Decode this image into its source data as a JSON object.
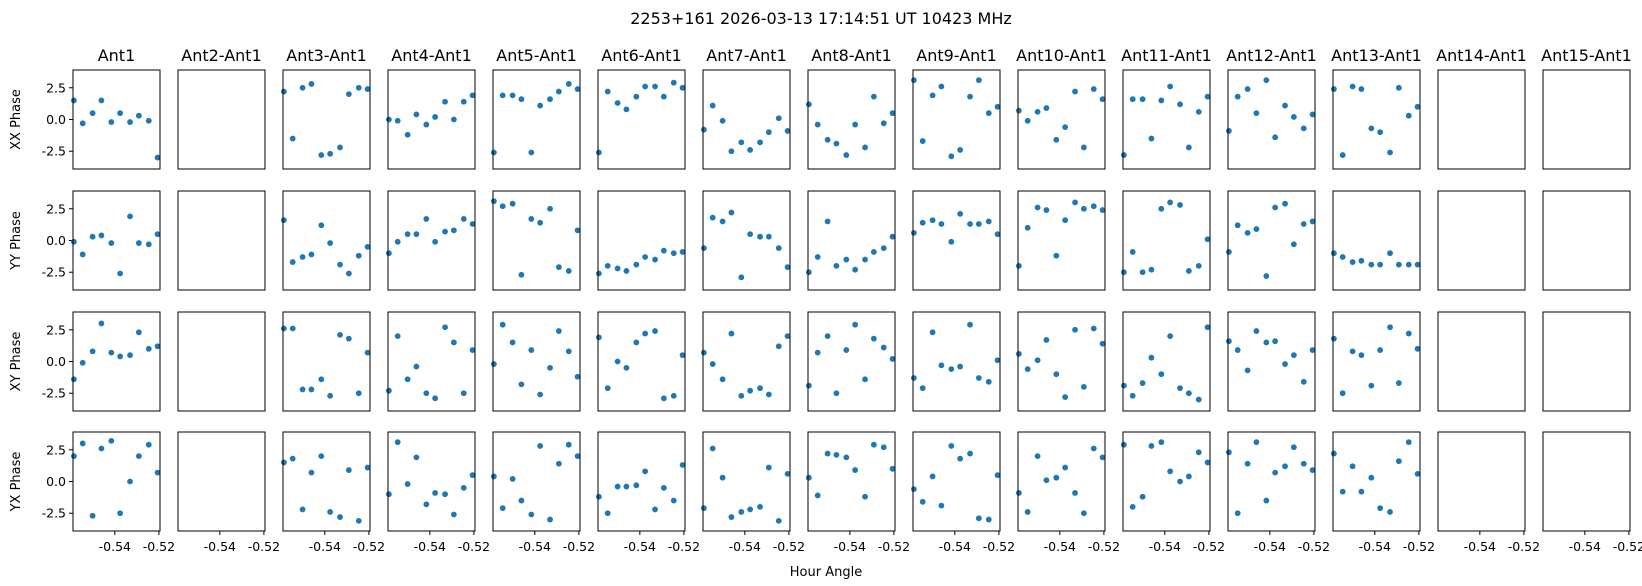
{
  "figure": {
    "suptitle": "2253+161  2026-03-13 17:14:51 UT  10423 MHz",
    "xlabel": "Hour Angle"
  },
  "chart_data": {
    "type": "scatter",
    "title": "2253+161  2026-03-13 17:14:51 UT  10423 MHz",
    "xlabel": "Hour Angle",
    "columns": [
      "Ant1",
      "Ant2-Ant1",
      "Ant3-Ant1",
      "Ant4-Ant1",
      "Ant5-Ant1",
      "Ant6-Ant1",
      "Ant7-Ant1",
      "Ant8-Ant1",
      "Ant9-Ant1",
      "Ant10-Ant1",
      "Ant11-Ant1",
      "Ant12-Ant1",
      "Ant13-Ant1",
      "Ant14-Ant1",
      "Ant15-Ant1"
    ],
    "rows": [
      "XX Phase",
      "YY Phase",
      "XY Phase",
      "YX Phase"
    ],
    "xlim": [
      -0.559,
      -0.5195
    ],
    "ylim": [
      -3.9,
      3.9
    ],
    "xticks": [
      -0.54,
      -0.52
    ],
    "xtick_labels": [
      "-0.54",
      "-0.52"
    ],
    "yticks": [
      2.5,
      0.0,
      -2.5
    ],
    "ytick_labels": [
      "2.5",
      "0.0",
      "-2.5"
    ],
    "grid": false,
    "marker_color": "#1f77b4",
    "x": [
      -0.5586,
      -0.5546,
      -0.5501,
      -0.5461,
      -0.5416,
      -0.5376,
      -0.5331,
      -0.5291,
      -0.5246,
      -0.5206
    ],
    "panels": [
      [
        {
          "y": [
            1.5,
            -0.3,
            0.5,
            1.5,
            -0.2,
            0.5,
            -0.2,
            0.3,
            -0.1,
            -3.0
          ]
        },
        {
          "y": []
        },
        {
          "y": [
            2.2,
            -1.5,
            2.5,
            2.8,
            -2.8,
            -2.7,
            -2.2,
            2.0,
            2.5,
            2.4
          ]
        },
        {
          "y": [
            0.0,
            -0.1,
            -1.2,
            0.4,
            -0.4,
            0.2,
            1.4,
            0.0,
            1.4,
            1.9
          ]
        },
        {
          "y": [
            -2.6,
            1.9,
            1.9,
            1.6,
            -2.6,
            1.1,
            1.6,
            2.2,
            2.8,
            2.4
          ]
        },
        {
          "y": [
            -2.6,
            2.2,
            1.3,
            0.8,
            1.8,
            2.6,
            2.6,
            1.8,
            2.9,
            2.5
          ]
        },
        {
          "y": [
            -0.8,
            1.1,
            -0.1,
            -2.5,
            -1.8,
            -2.4,
            -1.8,
            -1.0,
            0.1,
            -0.9
          ]
        },
        {
          "y": [
            1.2,
            -0.4,
            -1.6,
            -1.9,
            -2.8,
            -0.4,
            -2.2,
            1.8,
            -0.3,
            0.5
          ]
        },
        {
          "y": [
            3.1,
            -1.7,
            1.9,
            2.6,
            -2.9,
            -2.4,
            1.8,
            3.1,
            0.5,
            1.0
          ]
        },
        {
          "y": [
            0.7,
            -0.1,
            0.6,
            0.9,
            -1.6,
            -0.6,
            2.2,
            -2.2,
            2.4,
            1.6
          ]
        },
        {
          "y": [
            -2.8,
            1.6,
            1.6,
            -1.5,
            1.5,
            2.6,
            1.2,
            -2.2,
            0.6,
            1.8
          ]
        },
        {
          "y": [
            -0.9,
            1.8,
            2.4,
            0.5,
            3.1,
            -1.4,
            1.1,
            0.2,
            -0.7,
            0.4
          ]
        },
        {
          "y": [
            2.4,
            -2.8,
            2.6,
            2.4,
            -0.7,
            -1.0,
            -2.6,
            2.5,
            0.3,
            1.0
          ]
        },
        {
          "y": []
        },
        {
          "y": []
        }
      ],
      [
        {
          "y": [
            -0.1,
            -1.1,
            0.3,
            0.4,
            -0.2,
            -2.6,
            1.9,
            -0.2,
            -0.3,
            0.5
          ]
        },
        {
          "y": []
        },
        {
          "y": [
            1.6,
            -1.7,
            -1.3,
            -1.1,
            1.2,
            -0.2,
            -1.9,
            -2.6,
            -1.2,
            -0.5
          ]
        },
        {
          "y": [
            -1.0,
            -0.1,
            0.5,
            0.5,
            1.7,
            -0.1,
            0.7,
            0.8,
            1.7,
            1.3
          ]
        },
        {
          "y": [
            3.1,
            2.7,
            2.9,
            -2.7,
            1.7,
            1.4,
            2.5,
            -2.1,
            -2.4,
            0.8
          ]
        },
        {
          "y": [
            -2.6,
            -2.0,
            -2.2,
            -2.4,
            -1.9,
            -1.3,
            -1.5,
            -0.8,
            -1.0,
            -0.9
          ]
        },
        {
          "y": [
            -0.6,
            1.8,
            1.5,
            2.2,
            -2.9,
            0.5,
            0.3,
            0.3,
            -0.6,
            -2.1
          ]
        },
        {
          "y": [
            -2.5,
            -1.3,
            1.5,
            -2.0,
            -1.5,
            -2.3,
            -1.5,
            -0.9,
            -0.6,
            0.3
          ]
        },
        {
          "y": [
            0.6,
            1.4,
            1.6,
            1.3,
            -0.1,
            2.1,
            1.3,
            1.3,
            1.5,
            0.5
          ]
        },
        {
          "y": [
            -2.0,
            1.0,
            2.6,
            2.4,
            -1.2,
            1.6,
            3.0,
            2.5,
            2.7,
            2.4
          ]
        },
        {
          "y": [
            -2.5,
            -0.9,
            -2.5,
            -2.3,
            2.5,
            3.0,
            2.8,
            -2.4,
            -2.0,
            0.1
          ]
        },
        {
          "y": [
            -0.9,
            1.2,
            0.6,
            0.9,
            -2.8,
            2.6,
            2.9,
            -0.3,
            1.3,
            1.5
          ]
        },
        {
          "y": [
            -1.0,
            -1.3,
            -1.7,
            -1.6,
            -1.9,
            -1.9,
            -1.0,
            -1.9,
            -1.9,
            -1.9
          ]
        },
        {
          "y": []
        },
        {
          "y": []
        }
      ],
      [
        {
          "y": [
            -1.4,
            -0.1,
            0.8,
            3.0,
            0.7,
            0.4,
            0.5,
            2.3,
            1.0,
            1.2
          ]
        },
        {
          "y": []
        },
        {
          "y": [
            2.6,
            2.6,
            -2.2,
            -2.2,
            -1.4,
            -2.7,
            2.1,
            1.8,
            -2.5,
            0.7
          ]
        },
        {
          "y": [
            -2.3,
            2.0,
            -1.4,
            -0.4,
            -2.5,
            -2.9,
            2.7,
            1.5,
            -2.5,
            0.9
          ]
        },
        {
          "y": [
            -0.2,
            2.9,
            1.5,
            -1.8,
            0.9,
            -2.6,
            -0.5,
            2.4,
            0.8,
            -1.2
          ]
        },
        {
          "y": [
            1.9,
            -2.1,
            0.0,
            -0.5,
            1.5,
            2.2,
            2.4,
            -2.9,
            -2.7,
            0.5
          ]
        },
        {
          "y": [
            0.7,
            -0.2,
            -1.4,
            2.2,
            -2.7,
            -2.3,
            -2.1,
            -2.6,
            1.2,
            2.0
          ]
        },
        {
          "y": [
            -1.9,
            0.7,
            2.0,
            -2.5,
            0.9,
            2.9,
            -1.4,
            1.8,
            1.1,
            0.2
          ]
        },
        {
          "y": [
            -1.3,
            -2.1,
            2.3,
            -0.3,
            -0.6,
            -0.4,
            2.9,
            -1.3,
            -1.6,
            0.1
          ]
        },
        {
          "y": [
            0.6,
            -0.6,
            0.1,
            1.7,
            -1.0,
            -2.8,
            2.5,
            -2.0,
            2.6,
            1.4
          ]
        },
        {
          "y": [
            -1.9,
            -2.7,
            -1.7,
            0.3,
            -1.0,
            2.0,
            -2.1,
            -2.5,
            -3.0,
            2.7
          ]
        },
        {
          "y": [
            1.6,
            0.9,
            -0.7,
            2.4,
            1.5,
            1.6,
            -0.2,
            0.5,
            -1.6,
            0.9
          ]
        },
        {
          "y": [
            1.8,
            -2.5,
            0.8,
            0.5,
            -1.9,
            0.9,
            2.7,
            -1.7,
            2.2,
            1.0
          ]
        },
        {
          "y": []
        },
        {
          "y": []
        }
      ],
      [
        {
          "y": [
            2.0,
            3.0,
            -2.7,
            2.6,
            3.2,
            -2.5,
            0.0,
            2.0,
            2.9,
            0.7
          ]
        },
        {
          "y": []
        },
        {
          "y": [
            1.5,
            1.8,
            -2.2,
            0.7,
            2.0,
            -2.4,
            -2.8,
            0.9,
            -3.1,
            1.1
          ]
        },
        {
          "y": [
            -1.0,
            3.1,
            -0.2,
            1.9,
            -1.8,
            -0.9,
            -1.0,
            -2.6,
            -0.5,
            0.5
          ]
        },
        {
          "y": [
            0.4,
            -2.1,
            0.2,
            -1.5,
            -2.6,
            2.8,
            -3.0,
            1.4,
            2.9,
            2.0
          ]
        },
        {
          "y": [
            -1.2,
            -2.5,
            -0.4,
            -0.4,
            -0.3,
            0.8,
            -2.2,
            -0.5,
            -1.5,
            1.3
          ]
        },
        {
          "y": [
            -2.1,
            2.6,
            0.3,
            -2.8,
            -2.4,
            -2.2,
            -2.0,
            1.1,
            -3.1,
            0.6
          ]
        },
        {
          "y": [
            0.3,
            -1.1,
            2.2,
            2.1,
            1.9,
            0.9,
            -1.2,
            2.9,
            2.7,
            1.0
          ]
        },
        {
          "y": [
            -0.6,
            -1.6,
            0.4,
            -1.9,
            2.8,
            1.8,
            2.2,
            -2.9,
            -3.0,
            0.5
          ]
        },
        {
          "y": [
            -0.9,
            -2.4,
            2.0,
            0.1,
            0.3,
            1.1,
            -0.9,
            -2.5,
            2.6,
            1.9
          ]
        },
        {
          "y": [
            2.9,
            -2.0,
            -1.2,
            2.8,
            3.1,
            0.8,
            0.0,
            0.4,
            2.3,
            1.5
          ]
        },
        {
          "y": [
            2.3,
            -2.5,
            1.4,
            3.1,
            -1.5,
            0.7,
            1.2,
            2.7,
            1.4,
            0.9
          ]
        },
        {
          "y": [
            2.2,
            -0.8,
            1.2,
            -0.8,
            0.3,
            -2.1,
            -2.4,
            1.6,
            3.1,
            0.6
          ]
        },
        {
          "y": []
        },
        {
          "y": []
        }
      ]
    ]
  }
}
